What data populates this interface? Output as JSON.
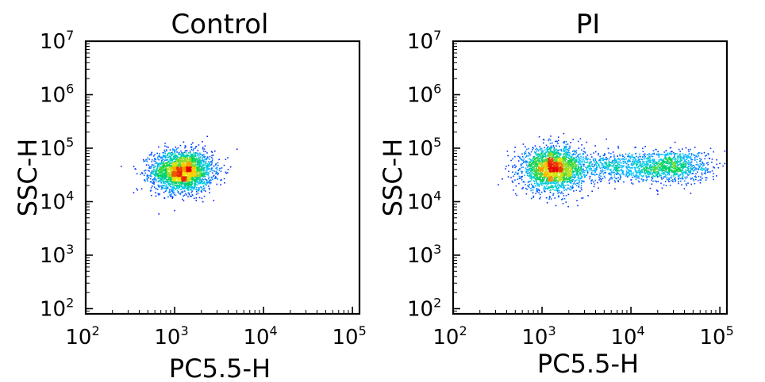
{
  "chart_data": [
    {
      "type": "scatter",
      "title": "Control",
      "xlabel": "PC5.5-H",
      "ylabel": "SSC-H",
      "x_scale": "log",
      "y_scale": "log",
      "xlim": [
        100,
        120000
      ],
      "ylim": [
        80,
        10000000
      ],
      "x_ticks": [
        {
          "value": 100,
          "base": "10",
          "exp": "2"
        },
        {
          "value": 1000,
          "base": "10",
          "exp": "3"
        },
        {
          "value": 10000,
          "base": "10",
          "exp": "4"
        },
        {
          "value": 100000,
          "base": "10",
          "exp": "5"
        }
      ],
      "y_ticks": [
        {
          "value": 100,
          "base": "10",
          "exp": "2"
        },
        {
          "value": 1000,
          "base": "10",
          "exp": "3"
        },
        {
          "value": 10000,
          "base": "10",
          "exp": "4"
        },
        {
          "value": 100000,
          "base": "10",
          "exp": "5"
        },
        {
          "value": 1000000,
          "base": "10",
          "exp": "6"
        },
        {
          "value": 10000000,
          "base": "10",
          "exp": "7"
        }
      ],
      "grid": false,
      "colormap": "density: blue-cyan-green-yellow-red",
      "populations": [
        {
          "x_center": 1200,
          "y_center": 38000,
          "log_sd_x": 0.17,
          "log_sd_y": 0.19,
          "count": 2600
        }
      ]
    },
    {
      "type": "scatter",
      "title": "PI",
      "xlabel": "PC5.5-H",
      "ylabel": "SSC-H",
      "x_scale": "log",
      "y_scale": "log",
      "xlim": [
        100,
        120000
      ],
      "ylim": [
        80,
        10000000
      ],
      "x_ticks": [
        {
          "value": 100,
          "base": "10",
          "exp": "2"
        },
        {
          "value": 1000,
          "base": "10",
          "exp": "3"
        },
        {
          "value": 10000,
          "base": "10",
          "exp": "4"
        },
        {
          "value": 100000,
          "base": "10",
          "exp": "5"
        }
      ],
      "y_ticks": [
        {
          "value": 100,
          "base": "10",
          "exp": "2"
        },
        {
          "value": 1000,
          "base": "10",
          "exp": "3"
        },
        {
          "value": 10000,
          "base": "10",
          "exp": "4"
        },
        {
          "value": 100000,
          "base": "10",
          "exp": "5"
        },
        {
          "value": 1000000,
          "base": "10",
          "exp": "6"
        },
        {
          "value": 10000000,
          "base": "10",
          "exp": "7"
        }
      ],
      "grid": false,
      "colormap": "density: blue-cyan-green-yellow-red",
      "populations": [
        {
          "x_center": 1300,
          "y_center": 42000,
          "log_sd_x": 0.17,
          "log_sd_y": 0.2,
          "count": 2200
        },
        {
          "x_center": 28000,
          "y_center": 48000,
          "log_sd_x": 0.22,
          "log_sd_y": 0.15,
          "count": 900
        },
        {
          "x_center": 7000,
          "y_center": 45000,
          "log_sd_x": 0.3,
          "log_sd_y": 0.14,
          "count": 700
        }
      ]
    }
  ]
}
